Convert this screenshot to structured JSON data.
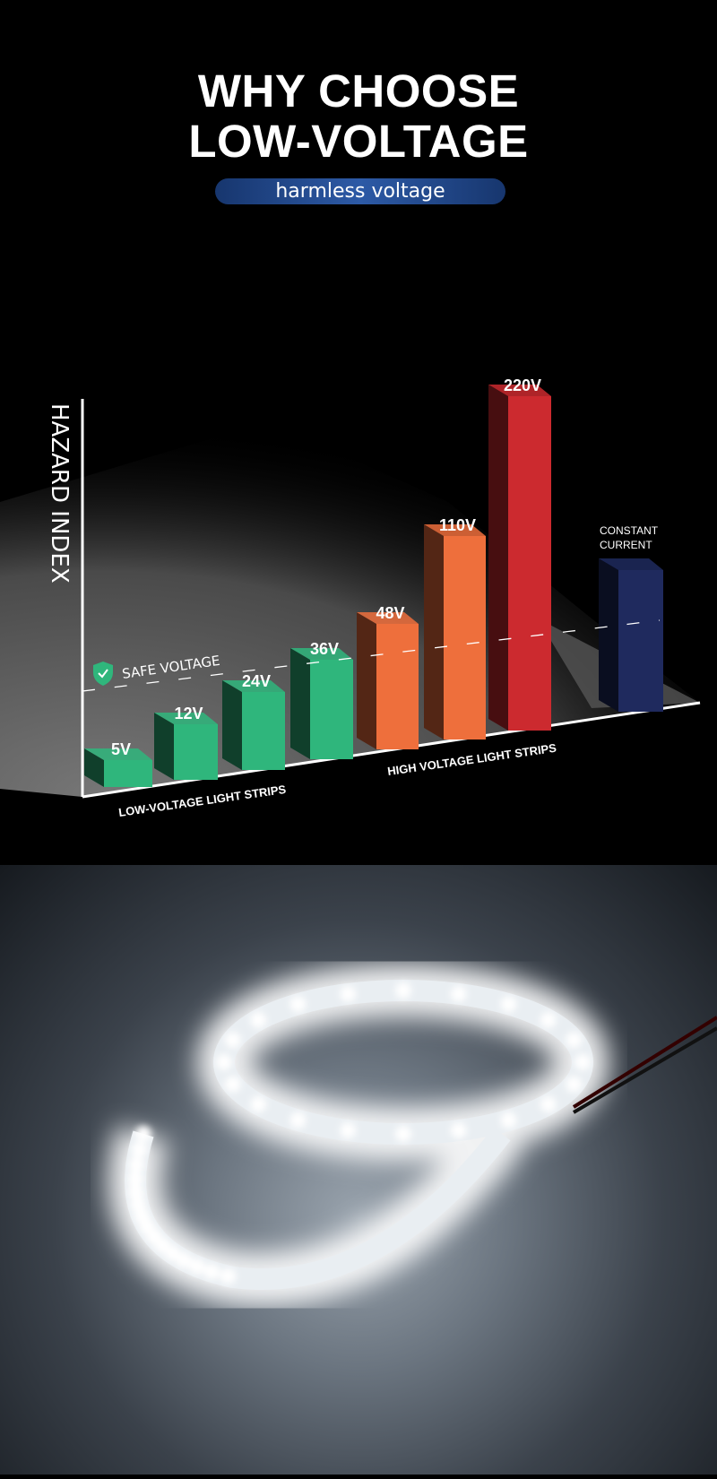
{
  "header": {
    "line1": "WHY CHOOSE",
    "line2": "LOW-VOLTAGE",
    "pill": "harmless voltage"
  },
  "chart_data": {
    "type": "bar",
    "ylabel": "HAZARD INDEX",
    "categories": [
      "5V",
      "12V",
      "24V",
      "36V",
      "48V",
      "110V",
      "220V",
      "CONSTANT CURRENT"
    ],
    "values": [
      30,
      62,
      87,
      111,
      140,
      227,
      373,
      158
    ],
    "colors": [
      "#2fb67c",
      "#2fb67c",
      "#2fb67c",
      "#2fb67c",
      "#ee6f3c",
      "#ee6f3c",
      "#cc2a2f",
      "#1f2a5e"
    ],
    "threshold_label": "SAFE VOLTAGE",
    "group_labels": [
      "LOW-VOLTAGE LIGHT STRIPS",
      "HIGH VOLTAGE LIGHT STRIPS"
    ],
    "constant_current_label": [
      "CONSTANT",
      "CURRENT"
    ],
    "grid": false
  }
}
